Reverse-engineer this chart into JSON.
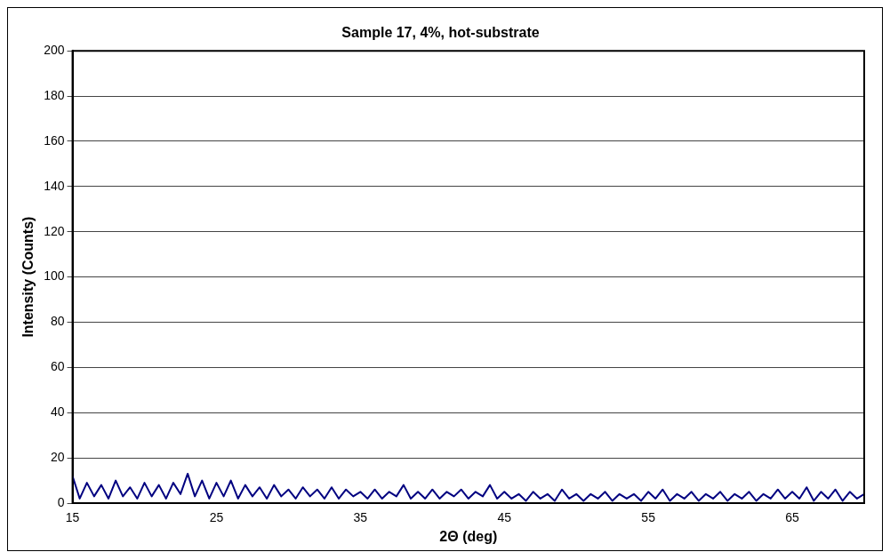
{
  "chart_data": {
    "type": "line",
    "title": "Sample 17, 4%, hot-substrate",
    "xlabel": "2Θ (deg)",
    "ylabel": "Intensity (Counts)",
    "x": [
      15,
      15.5,
      16,
      16.5,
      17,
      17.5,
      18,
      18.5,
      19,
      19.5,
      20,
      20.5,
      21,
      21.5,
      22,
      22.5,
      23,
      23.5,
      24,
      24.5,
      25,
      25.5,
      26,
      26.5,
      27,
      27.5,
      28,
      28.5,
      29,
      29.5,
      30,
      30.5,
      31,
      31.5,
      32,
      32.5,
      33,
      33.5,
      34,
      34.5,
      35,
      35.5,
      36,
      36.5,
      37,
      37.5,
      38,
      38.5,
      39,
      39.5,
      40,
      40.5,
      41,
      41.5,
      42,
      42.5,
      43,
      43.5,
      44,
      44.5,
      45,
      45.5,
      46,
      46.5,
      47,
      47.5,
      48,
      48.5,
      49,
      49.5,
      50,
      50.5,
      51,
      51.5,
      52,
      52.5,
      53,
      53.5,
      54,
      54.5,
      55,
      55.5,
      56,
      56.5,
      57,
      57.5,
      58,
      58.5,
      59,
      59.5,
      60,
      60.5,
      61,
      61.5,
      62,
      62.5,
      63,
      63.5,
      64,
      64.5,
      65,
      65.5,
      66,
      66.5,
      67,
      67.5,
      68,
      68.5,
      69,
      69.5,
      70
    ],
    "series": [
      {
        "color": "#000080",
        "values": [
          12,
          2,
          9,
          3,
          8,
          2,
          10,
          3,
          7,
          2,
          9,
          3,
          8,
          2,
          9,
          4,
          13,
          3,
          10,
          2,
          9,
          3,
          10,
          2,
          8,
          3,
          7,
          2,
          8,
          3,
          6,
          2,
          7,
          3,
          6,
          2,
          7,
          2,
          6,
          3,
          5,
          2,
          6,
          2,
          5,
          3,
          8,
          2,
          5,
          2,
          6,
          2,
          5,
          3,
          6,
          2,
          5,
          3,
          8,
          2,
          5,
          2,
          4,
          1,
          5,
          2,
          4,
          1,
          6,
          2,
          4,
          1,
          4,
          2,
          5,
          1,
          4,
          2,
          4,
          1,
          5,
          2,
          6,
          1,
          4,
          2,
          5,
          1,
          4,
          2,
          5,
          1,
          4,
          2,
          5,
          1,
          4,
          2,
          6,
          2,
          5,
          2,
          7,
          1,
          5,
          2,
          6,
          1,
          5,
          2,
          4
        ]
      }
    ],
    "xlim": [
      15,
      70
    ],
    "xticks": [
      15,
      25,
      35,
      45,
      55,
      65
    ],
    "ylim": [
      0,
      200
    ],
    "yticks": [
      0,
      20,
      40,
      60,
      80,
      100,
      120,
      140,
      160,
      180,
      200
    ],
    "grid": "y",
    "legend": false,
    "marker": "none",
    "line_style": "solid"
  }
}
